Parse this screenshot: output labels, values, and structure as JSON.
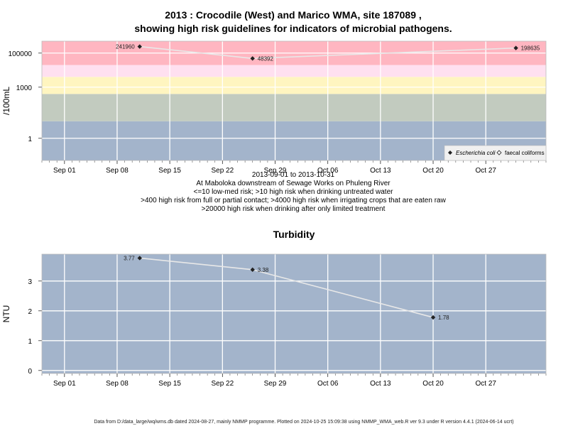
{
  "footer": "Data from D:/data_large/wq/wms.db dated 2024-08-27, mainly NMMP programme. Plotted on 2024-10-25 15:09:38 using NMMP_WMA_web.R ver 9.3 under R version 4.4.1 (2024-06-14 ucrt)",
  "colors": {
    "risk_high": "#ffb6c1",
    "risk_pink_light": "#ffe0f0",
    "risk_yellow": "#fff5c0",
    "risk_green": "#c2cbbf",
    "risk_blue": "#a3b4cb",
    "turbidity_bg": "#a3b4cb",
    "line": "#e8e8e8",
    "point": "#222222"
  },
  "chart_data": [
    {
      "type": "line",
      "title_line1": "2013 : Crocodile (West) and Marico WMA, site 187089 ,",
      "title_line2": "showing high risk guidelines for indicators of microbial pathogens.",
      "ylabel": "/100mL",
      "y_scale": "log",
      "ylim": [
        0.05,
        500000
      ],
      "xlim": [
        "2013-08-29",
        "2013-11-04"
      ],
      "x_ticks": [
        "Sep 01",
        "Sep 08",
        "Sep 15",
        "Sep 22",
        "Sep 29",
        "Oct 06",
        "Oct 13",
        "Oct 20",
        "Oct 27"
      ],
      "x_tick_dates": [
        "2013-09-01",
        "2013-09-08",
        "2013-09-15",
        "2013-09-22",
        "2013-09-29",
        "2013-10-06",
        "2013-10-13",
        "2013-10-20",
        "2013-10-27"
      ],
      "y_ticks": [
        "1",
        "1000",
        "100000"
      ],
      "y_tick_values": [
        1,
        1000,
        100000
      ],
      "grid": true,
      "risk_bands": [
        {
          "from": 0.05,
          "to": 10,
          "color": "risk_blue"
        },
        {
          "from": 10,
          "to": 400,
          "color": "risk_green"
        },
        {
          "from": 400,
          "to": 4000,
          "color": "risk_yellow"
        },
        {
          "from": 4000,
          "to": 20000,
          "color": "risk_pink_light"
        },
        {
          "from": 20000,
          "to": 500000,
          "color": "risk_high"
        }
      ],
      "series": [
        {
          "name": "Escherichia coli",
          "marker": "filled-diamond",
          "x": [
            "2013-09-11",
            "2013-09-26",
            "2013-10-31"
          ],
          "y": [
            241960,
            48392,
            198635
          ],
          "labels": [
            "241960",
            "48392",
            "198635"
          ]
        },
        {
          "name": "faecal coliforms",
          "marker": "open-diamond",
          "x": [],
          "y": []
        }
      ],
      "legend_placement": "bottom-right",
      "notes": [
        "2013-09-01 to 2013-10-31",
        "At Maboloka downstream of Sewage Works on Phuleng River",
        "<=10 low-med risk; >10 high risk when drinking untreated water",
        ">400 high risk from full or partial contact; >4000 high risk when irrigating crops that are eaten raw",
        ">20000 high risk when drinking after only limited treatment"
      ]
    },
    {
      "type": "line",
      "title": "Turbidity",
      "ylabel": "NTU",
      "ylim": [
        -0.1,
        3.9
      ],
      "xlim": [
        "2013-08-29",
        "2013-11-04"
      ],
      "x_ticks": [
        "Sep 01",
        "Sep 08",
        "Sep 15",
        "Sep 22",
        "Sep 29",
        "Oct 06",
        "Oct 13",
        "Oct 20",
        "Oct 27"
      ],
      "x_tick_dates": [
        "2013-09-01",
        "2013-09-08",
        "2013-09-15",
        "2013-09-22",
        "2013-09-29",
        "2013-10-06",
        "2013-10-13",
        "2013-10-20",
        "2013-10-27"
      ],
      "y_ticks": [
        "0",
        "1",
        "2",
        "3"
      ],
      "y_tick_values": [
        0,
        1,
        2,
        3
      ],
      "grid": true,
      "series": [
        {
          "name": "",
          "marker": "filled-diamond",
          "x": [
            "2013-09-11",
            "2013-09-26",
            "2013-10-20"
          ],
          "y": [
            3.77,
            3.38,
            1.78
          ],
          "labels": [
            "3.77",
            "3.38",
            "1.78"
          ]
        }
      ]
    }
  ]
}
